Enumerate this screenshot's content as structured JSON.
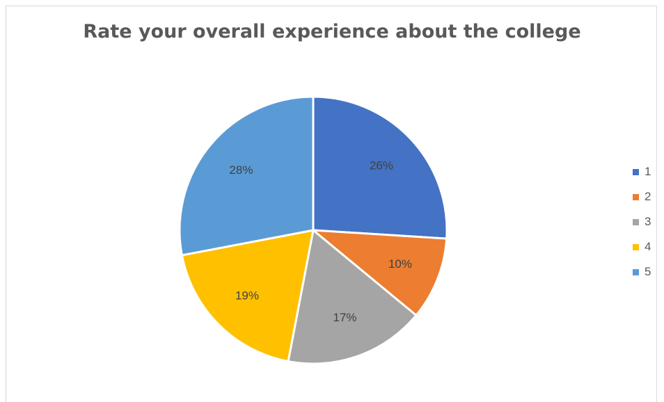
{
  "chart_data": {
    "type": "pie",
    "title": "Rate your overall experience about the college",
    "categories": [
      "1",
      "2",
      "3",
      "4",
      "5"
    ],
    "values": [
      26,
      10,
      17,
      19,
      28
    ],
    "labels": [
      "26%",
      "10%",
      "17%",
      "19%",
      "28%"
    ],
    "colors": [
      "#4472c4",
      "#ed7d31",
      "#a5a5a5",
      "#ffc000",
      "#5b9bd5"
    ],
    "legend_position": "right"
  }
}
